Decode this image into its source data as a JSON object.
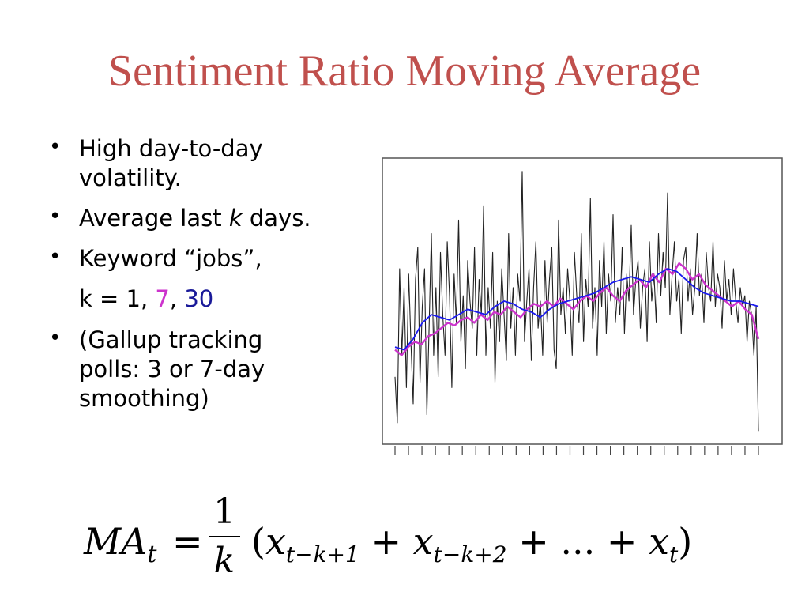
{
  "title": "Sentiment Ratio Moving Average",
  "bullets": [
    {
      "line1": "High day-to-day",
      "line2": "volatility."
    },
    {
      "pre": "Average last ",
      "k": "k",
      "post": " days."
    },
    {
      "line1": "Keyword “jobs”,"
    },
    {
      "line1": "(Gallup tracking",
      "line2": "polls: 3 or 7-day",
      "line3": "smoothing)"
    }
  ],
  "k_line": {
    "prefix": "k = 1, ",
    "k7": "7",
    "sep": ", ",
    "k30": "30"
  },
  "formula": {
    "lhs": "MA",
    "lhs_sub": "t",
    "eq": "=",
    "num": "1",
    "den": "k",
    "rhs_open": "(",
    "x": "x",
    "sub1": "t−k+1",
    "plus": " + ",
    "sub2": "t−k+2",
    "dots": "...",
    "subt": "t",
    "rhs_close": ")"
  },
  "colors": {
    "title": "#c0504d",
    "k1_series": "#222222",
    "k7_series": "#cc33cc",
    "k30_series": "#1a1aee"
  },
  "chart_data": {
    "type": "line",
    "title": "",
    "xlabel": "",
    "ylabel": "",
    "n_ticks": 28,
    "ylim": [
      0,
      1
    ],
    "series": [
      {
        "color": "#222222",
        "values": [
          0.22,
          0.05,
          0.62,
          0.3,
          0.55,
          0.18,
          0.6,
          0.35,
          0.12,
          0.58,
          0.7,
          0.2,
          0.48,
          0.62,
          0.08,
          0.4,
          0.75,
          0.3,
          0.55,
          0.22,
          0.68,
          0.45,
          0.3,
          0.72,
          0.52,
          0.18,
          0.6,
          0.42,
          0.8,
          0.35,
          0.52,
          0.25,
          0.65,
          0.5,
          0.4,
          0.7,
          0.3,
          0.58,
          0.45,
          0.85,
          0.3,
          0.55,
          0.4,
          0.68,
          0.2,
          0.5,
          0.35,
          0.62,
          0.45,
          0.28,
          0.75,
          0.4,
          0.55,
          0.3,
          0.6,
          0.5,
          0.98,
          0.35,
          0.5,
          0.62,
          0.28,
          0.55,
          0.72,
          0.4,
          0.5,
          0.3,
          0.65,
          0.42,
          0.58,
          0.7,
          0.32,
          0.25,
          0.8,
          0.45,
          0.55,
          0.38,
          0.62,
          0.5,
          0.3,
          0.68,
          0.52,
          0.42,
          0.75,
          0.35,
          0.58,
          0.48,
          0.88,
          0.4,
          0.55,
          0.3,
          0.65,
          0.48,
          0.72,
          0.38,
          0.6,
          0.5,
          0.82,
          0.42,
          0.55,
          0.45,
          0.7,
          0.38,
          0.6,
          0.5,
          0.78,
          0.45,
          0.58,
          0.65,
          0.4,
          0.55,
          0.62,
          0.35,
          0.72,
          0.5,
          0.6,
          0.42,
          0.75,
          0.52,
          0.68,
          0.55,
          0.9,
          0.45,
          0.6,
          0.72,
          0.5,
          0.58,
          0.38,
          0.65,
          0.7,
          0.5,
          0.62,
          0.45,
          0.55,
          0.75,
          0.52,
          0.6,
          0.42,
          0.68,
          0.55,
          0.5,
          0.72,
          0.48,
          0.6,
          0.55,
          0.4,
          0.65,
          0.5,
          0.58,
          0.45,
          0.62,
          0.5,
          0.42,
          0.55,
          0.48,
          0.52,
          0.35,
          0.5,
          0.45,
          0.3,
          0.48,
          0.02
        ]
      },
      {
        "color": "#cc33cc",
        "values": [
          0.32,
          0.3,
          0.33,
          0.35,
          0.34,
          0.37,
          0.38,
          0.4,
          0.42,
          0.41,
          0.43,
          0.44,
          0.42,
          0.45,
          0.43,
          0.46,
          0.45,
          0.48,
          0.46,
          0.44,
          0.47,
          0.49,
          0.48,
          0.5,
          0.48,
          0.51,
          0.49,
          0.47,
          0.5,
          0.52,
          0.5,
          0.53,
          0.55,
          0.52,
          0.5,
          0.54,
          0.56,
          0.58,
          0.55,
          0.6,
          0.57,
          0.62,
          0.6,
          0.64,
          0.62,
          0.58,
          0.6,
          0.56,
          0.54,
          0.52,
          0.5,
          0.48,
          0.5,
          0.47,
          0.45,
          0.36
        ]
      },
      {
        "color": "#1a1aee",
        "values": [
          0.33,
          0.32,
          0.36,
          0.42,
          0.45,
          0.44,
          0.43,
          0.45,
          0.47,
          0.46,
          0.45,
          0.48,
          0.5,
          0.49,
          0.47,
          0.46,
          0.44,
          0.47,
          0.49,
          0.5,
          0.51,
          0.52,
          0.53,
          0.55,
          0.57,
          0.58,
          0.59,
          0.58,
          0.57,
          0.6,
          0.62,
          0.61,
          0.58,
          0.55,
          0.53,
          0.52,
          0.51,
          0.5,
          0.5,
          0.49,
          0.48
        ]
      }
    ]
  }
}
